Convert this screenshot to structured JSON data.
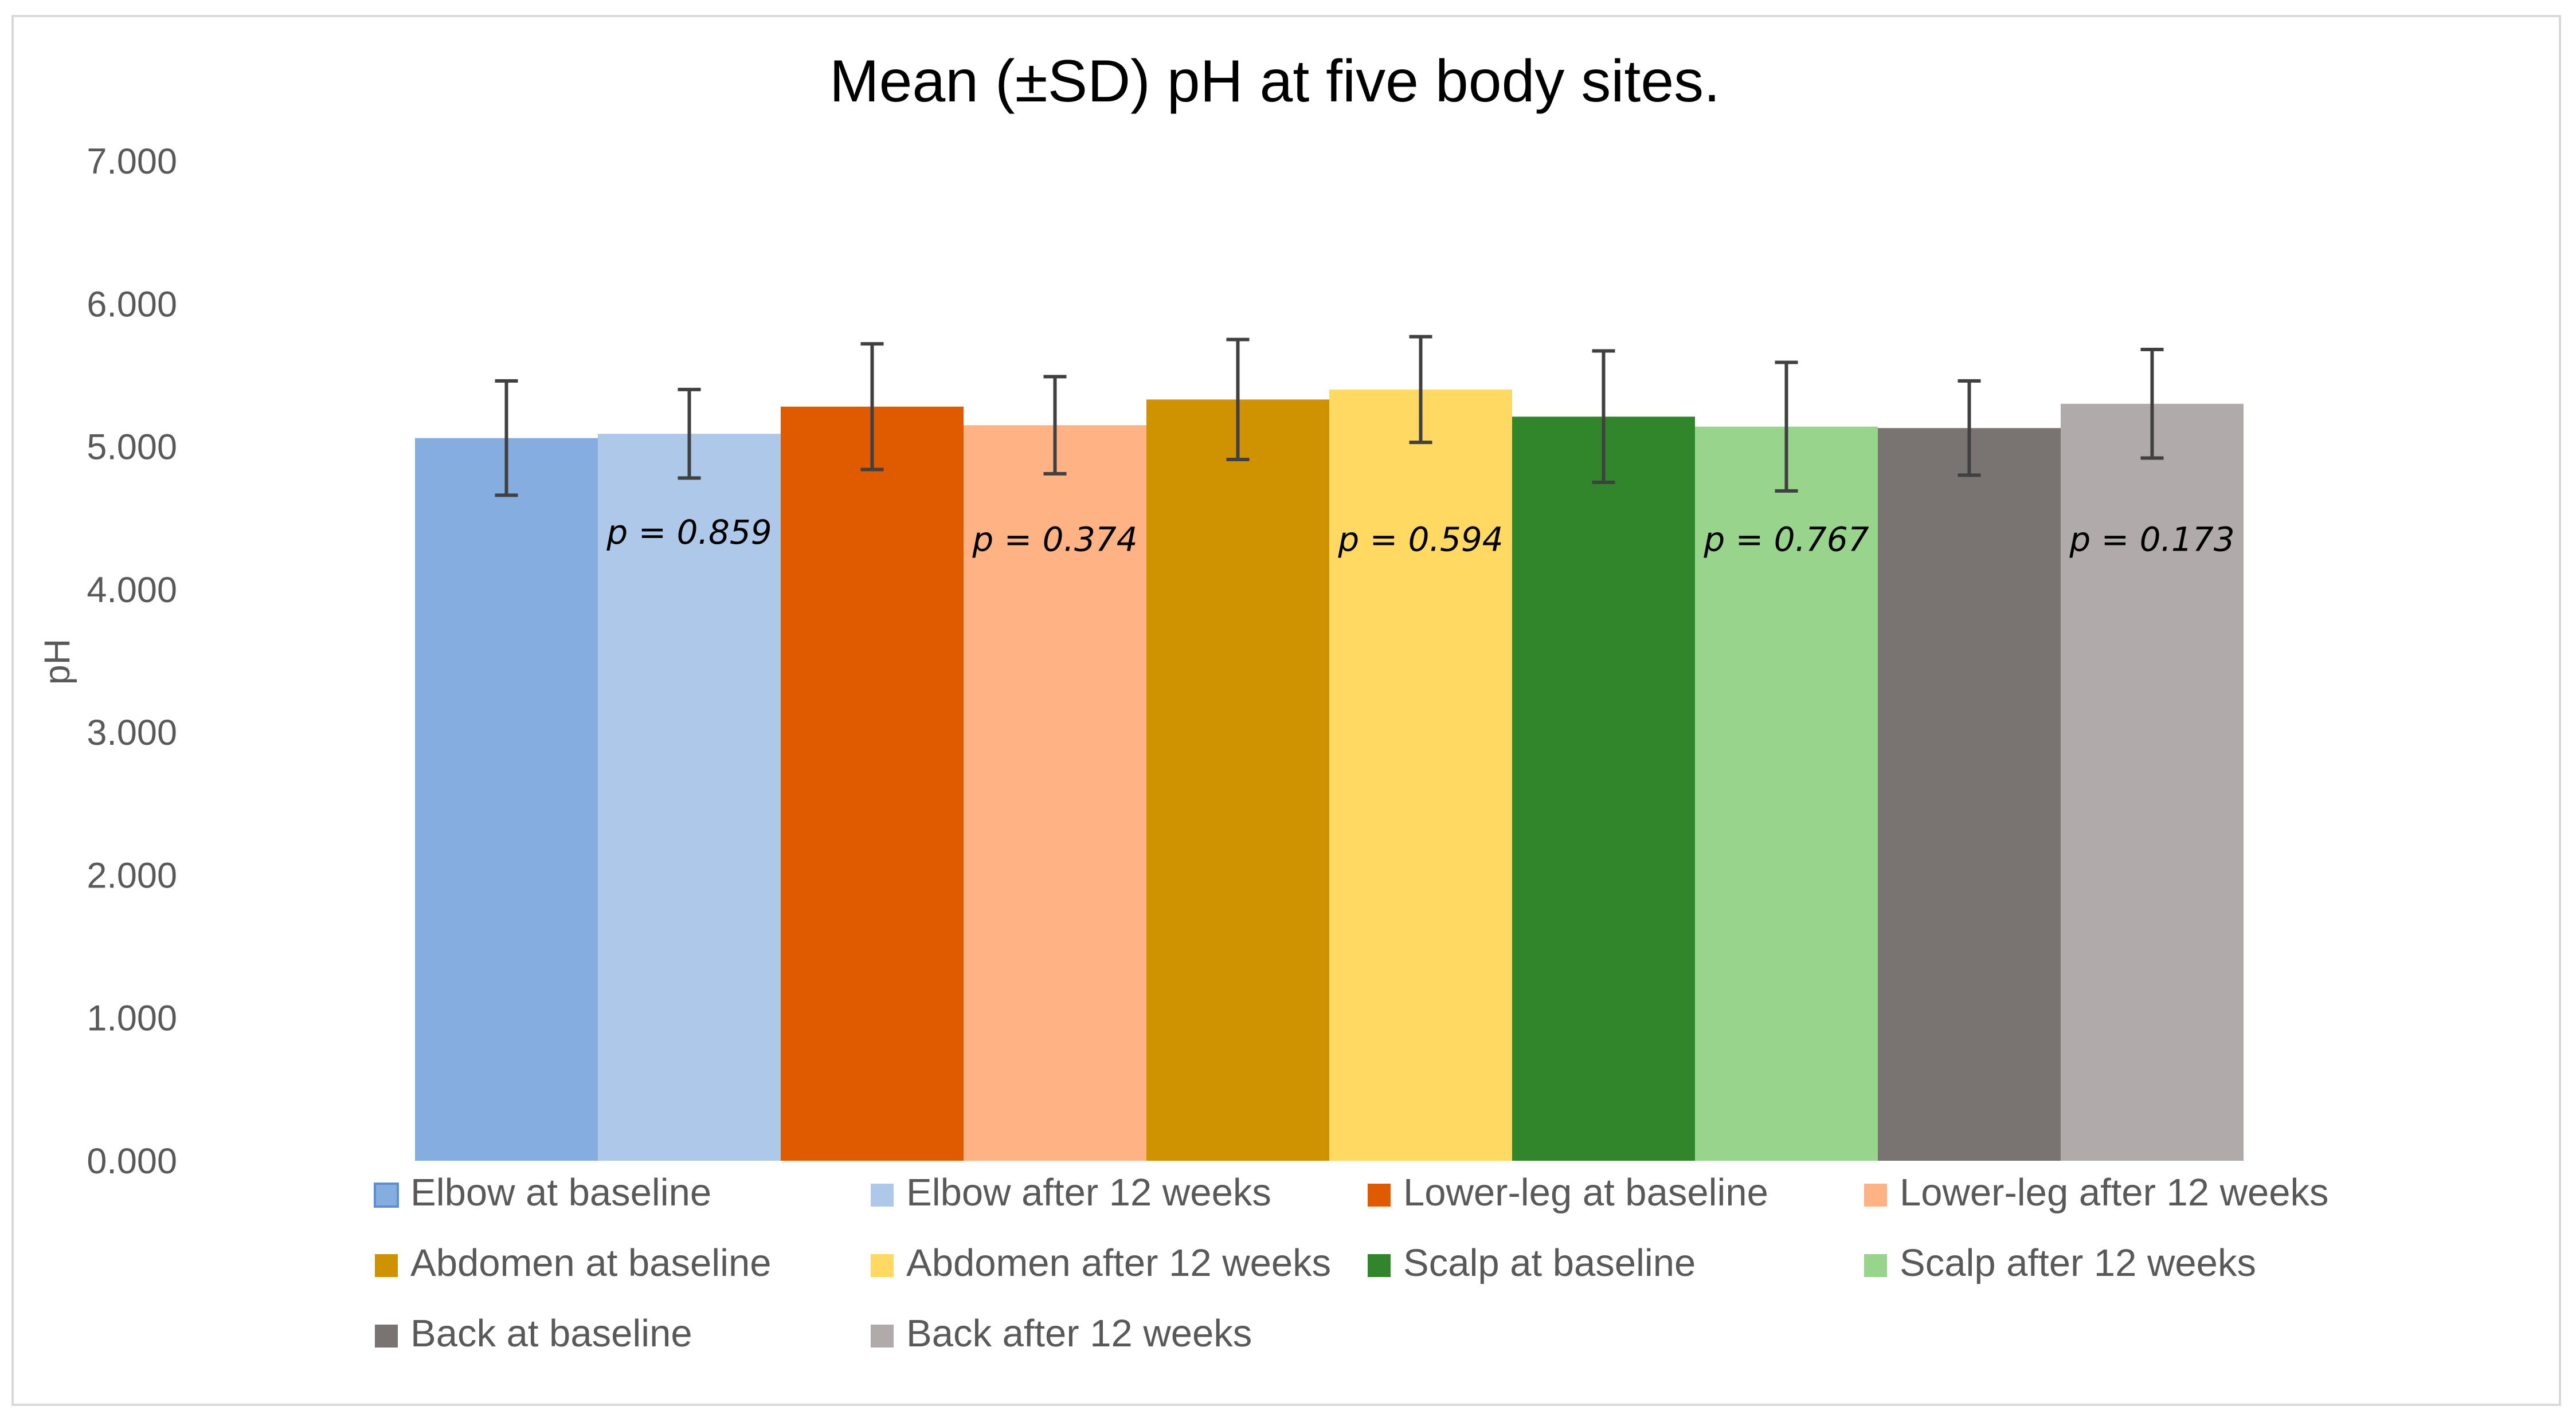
{
  "chart_data": {
    "type": "bar",
    "title": "Mean (±SD) pH at five body sites.",
    "ylabel": "pH",
    "xlabel": "",
    "ylim": [
      0,
      7
    ],
    "yticks": [
      "0.000",
      "1.000",
      "2.000",
      "3.000",
      "4.000",
      "5.000",
      "6.000",
      "7.000"
    ],
    "grid": false,
    "legend_position": "bottom",
    "error_bars": "±SD",
    "series": [
      {
        "name": "Elbow at baseline",
        "value": 5.06,
        "sd": 0.4,
        "color": "#85ade0"
      },
      {
        "name": "Elbow after 12 weeks",
        "value": 5.09,
        "sd": 0.31,
        "color": "#aec8e9"
      },
      {
        "name": "Lower-leg at baseline",
        "value": 5.28,
        "sd": 0.44,
        "color": "#e05a00"
      },
      {
        "name": "Lower-leg after 12 weeks",
        "value": 5.15,
        "sd": 0.34,
        "color": "#ffb284"
      },
      {
        "name": "Abdomen at baseline",
        "value": 5.33,
        "sd": 0.42,
        "color": "#cf9200"
      },
      {
        "name": "Abdomen after 12 weeks",
        "value": 5.4,
        "sd": 0.37,
        "color": "#ffd961"
      },
      {
        "name": "Scalp at baseline",
        "value": 5.21,
        "sd": 0.46,
        "color": "#31862b"
      },
      {
        "name": "Scalp after 12 weeks",
        "value": 5.14,
        "sd": 0.45,
        "color": "#98d48b"
      },
      {
        "name": "Back at baseline",
        "value": 5.13,
        "sd": 0.33,
        "color": "#797372"
      },
      {
        "name": "Back after 12 weeks",
        "value": 5.3,
        "sd": 0.38,
        "color": "#b0abaa"
      }
    ],
    "annotations": [
      {
        "text": "p = 0.859",
        "bar_index": 1,
        "y": 4.32
      },
      {
        "text": "p = 0.374",
        "bar_index": 3,
        "y": 4.27
      },
      {
        "text": "p = 0.594",
        "bar_index": 5,
        "y": 4.27
      },
      {
        "text": "p = 0.767",
        "bar_index": 7,
        "y": 4.27
      },
      {
        "text": "p = 0.173",
        "bar_index": 9,
        "y": 4.27
      }
    ]
  }
}
